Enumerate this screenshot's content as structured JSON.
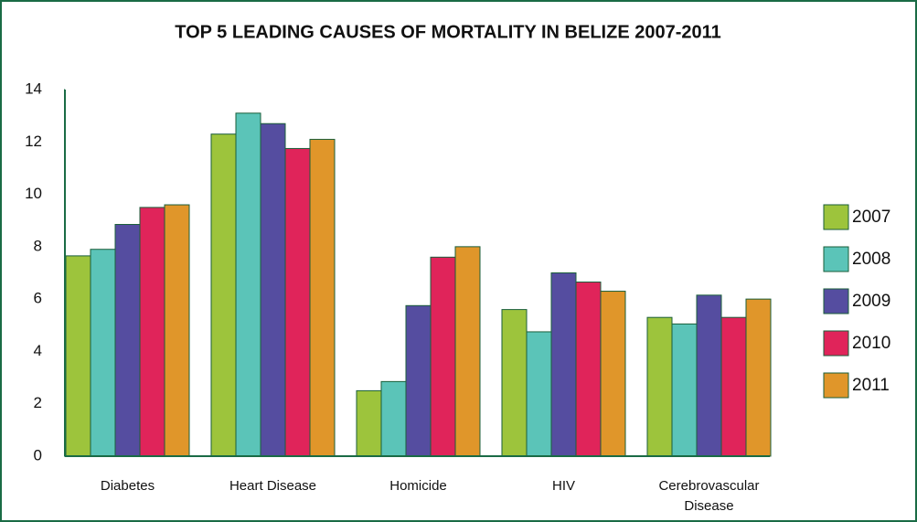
{
  "chart_data": {
    "type": "bar",
    "title": "TOP 5 LEADING CAUSES OF MORTALITY IN BELIZE 2007-2011",
    "categories": [
      "Diabetes",
      "Heart Disease",
      "Homicide",
      "HIV",
      "Cerebrovascular Disease"
    ],
    "series": [
      {
        "name": "2007",
        "color": "#9dc43c",
        "values": [
          7.65,
          12.3,
          2.5,
          5.6,
          5.3
        ]
      },
      {
        "name": "2008",
        "color": "#5bc4b8",
        "values": [
          7.9,
          13.1,
          2.85,
          4.75,
          5.05
        ]
      },
      {
        "name": "2009",
        "color": "#554da0",
        "values": [
          8.85,
          12.7,
          5.75,
          7.0,
          6.15
        ]
      },
      {
        "name": "2010",
        "color": "#e0245a",
        "values": [
          9.5,
          11.75,
          7.6,
          6.65,
          5.3
        ]
      },
      {
        "name": "2011",
        "color": "#e0962a",
        "values": [
          9.6,
          12.1,
          8.0,
          6.3,
          6.0
        ]
      }
    ],
    "ylim": [
      0,
      14
    ],
    "yticks": [
      0,
      2,
      4,
      6,
      8,
      10,
      12,
      14
    ],
    "grid": false,
    "legend": "right"
  }
}
